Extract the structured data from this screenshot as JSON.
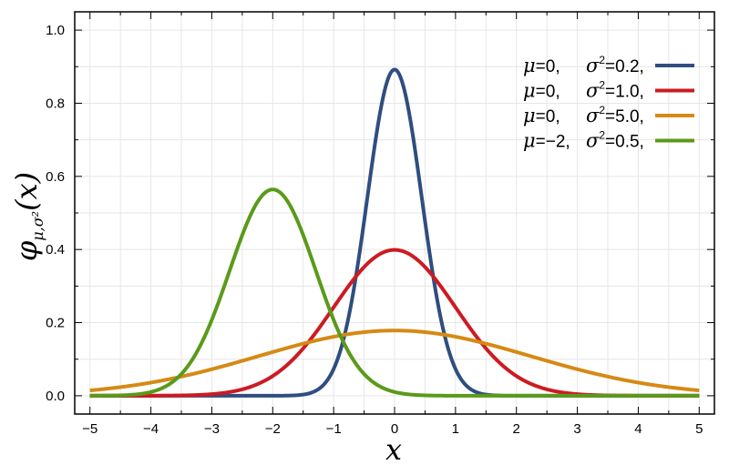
{
  "chart_data": {
    "type": "line",
    "title": "",
    "xlabel": "x",
    "ylabel": {
      "main": "φ",
      "subscript": "μ,σ²",
      "argument": "(x)"
    },
    "xlim": [
      -5.25,
      5.25
    ],
    "ylim": [
      -0.05,
      1.05
    ],
    "x_ticks": [
      "−5",
      "−4",
      "−3",
      "−2",
      "−1",
      "0",
      "1",
      "2",
      "3",
      "4",
      "5"
    ],
    "y_ticks": [
      "0.0",
      "0.2",
      "0.4",
      "0.6",
      "0.8",
      "1.0"
    ],
    "grid": true,
    "legend_position": "top-right",
    "series": [
      {
        "name": "μ=0, σ²=0.2,",
        "mu_text": "μ",
        "mu_value": "=0,",
        "sigma_text": "σ",
        "sigma_value": "=0.2,",
        "mu": 0,
        "variance": 0.2,
        "color": "#2f4e7f"
      },
      {
        "name": "μ=0, σ²=1.0,",
        "mu_text": "μ",
        "mu_value": "=0,",
        "sigma_text": "σ",
        "sigma_value": "=1.0,",
        "mu": 0,
        "variance": 1.0,
        "color": "#cc1b22"
      },
      {
        "name": "μ=0, σ²=5.0,",
        "mu_text": "μ",
        "mu_value": "=0,",
        "sigma_text": "σ",
        "sigma_value": "=5.0,",
        "mu": 0,
        "variance": 5.0,
        "color": "#d58a14"
      },
      {
        "name": "μ=−2, σ²=0.5,",
        "mu_text": "μ",
        "mu_value": "=−2,",
        "sigma_text": "σ",
        "sigma_value": "=0.5,",
        "mu": -2,
        "variance": 0.5,
        "color": "#5a9a1a"
      }
    ]
  }
}
